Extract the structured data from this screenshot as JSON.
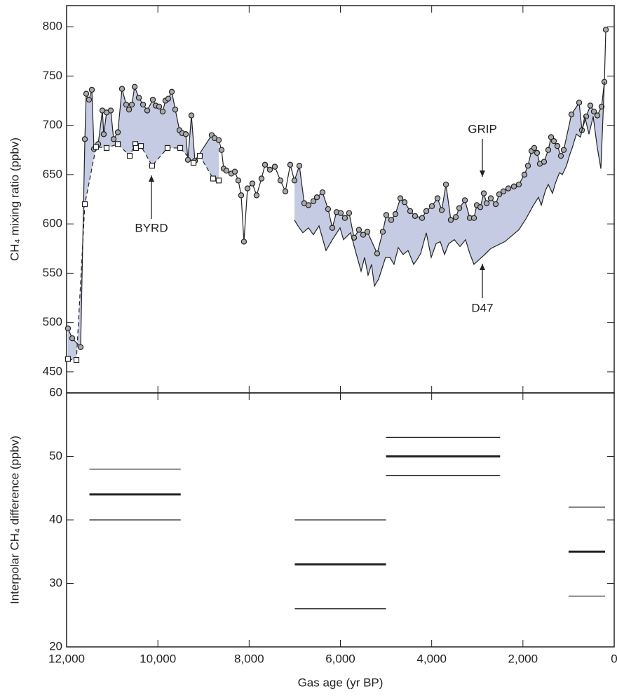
{
  "chart_data": [
    {
      "type": "line",
      "ylabel": "CH₄ mixing ratio (ppbv)",
      "xlim": [
        12000,
        0
      ],
      "ylim": [
        428.6,
        821.4
      ],
      "yticks": [
        450,
        500,
        550,
        600,
        650,
        700,
        750,
        800
      ],
      "fill_color": "#c5cbe3",
      "series": [
        {
          "name": "GRIP",
          "marker": "circle",
          "color": "#222222",
          "x": [
            11970,
            11877,
            11693,
            11600,
            11570,
            11509,
            11447,
            11400,
            11308,
            11216,
            11186,
            11124,
            11032,
            10970,
            10878,
            10786,
            10694,
            10632,
            10571,
            10509,
            10417,
            10325,
            10233,
            10110,
            10048,
            9972,
            9895,
            9834,
            9772,
            9695,
            9619,
            9526,
            9465,
            9388,
            9342,
            9265,
            9188,
            8820,
            8758,
            8666,
            8605,
            8558,
            8497,
            8390,
            8313,
            8237,
            8175,
            8114,
            8036,
            7929,
            7837,
            7729,
            7652,
            7545,
            7437,
            7314,
            7206,
            7099,
            7007,
            6899,
            6792,
            6700,
            6592,
            6515,
            6392,
            6270,
            6177,
            6085,
            5993,
            5901,
            5809,
            5701,
            5594,
            5501,
            5409,
            5194,
            5071,
            4994,
            4886,
            4794,
            4686,
            4594,
            4471,
            4364,
            4210,
            4118,
            3995,
            3872,
            3779,
            3687,
            3580,
            3472,
            3395,
            3272,
            3165,
            3073,
            3011,
            2934,
            2858,
            2796,
            2704,
            2596,
            2520,
            2427,
            2320,
            2197,
            2090,
            1967,
            1890,
            1813,
            1752,
            1690,
            1629,
            1537,
            1445,
            1383,
            1322,
            1245,
            1168,
            1106,
            937,
            768,
            707,
            614,
            522,
            445,
            369,
            276,
            215,
            184
          ],
          "values": [
            494,
            484,
            475,
            686,
            732,
            726,
            736,
            676,
            681,
            715,
            691,
            713,
            715,
            686,
            693,
            737,
            721,
            716,
            721,
            739,
            728,
            721,
            715,
            726,
            720,
            719,
            714,
            725,
            727,
            734,
            716,
            695,
            692,
            691,
            665,
            710,
            664,
            690,
            687,
            685,
            675,
            656,
            654,
            651,
            653,
            644,
            629,
            582,
            636,
            641,
            629,
            646,
            660,
            655,
            658,
            644,
            633,
            660,
            644,
            659,
            621,
            619,
            623,
            627,
            632,
            615,
            596,
            612,
            611,
            606,
            611,
            586,
            594,
            589,
            592,
            570,
            592,
            609,
            604,
            610,
            626,
            622,
            613,
            608,
            606,
            613,
            618,
            626,
            614,
            640,
            604,
            607,
            616,
            624,
            606,
            606,
            619,
            617,
            631,
            621,
            626,
            620,
            630,
            633,
            636,
            638,
            640,
            650,
            659,
            674,
            677,
            672,
            661,
            663,
            675,
            688,
            684,
            679,
            669,
            675,
            711,
            723,
            695,
            709,
            720,
            714,
            710,
            719,
            744,
            797
          ]
        },
        {
          "name": "BYRD",
          "marker": "square",
          "color": "#222222",
          "x": [
            11970,
            11785,
            11600,
            11355,
            11124,
            10878,
            10617,
            10494,
            10479,
            10371,
            10126,
            9788,
            9511,
            9219,
            9081,
            8789,
            8666
          ],
          "values": [
            463,
            462,
            620,
            678,
            677,
            681,
            669,
            681,
            677,
            679,
            659,
            677,
            677,
            662,
            669,
            646,
            644
          ]
        },
        {
          "name": "D47",
          "marker": "none",
          "color": "#222222",
          "x": [
            7007,
            6930,
            6823,
            6700,
            6592,
            6469,
            6316,
            6162,
            6008,
            5932,
            5778,
            5655,
            5547,
            5470,
            5394,
            5317,
            5255,
            5163,
            5010,
            4917,
            4825,
            4732,
            4625,
            4518,
            4394,
            4318,
            4241,
            4118,
            4010,
            3903,
            3811,
            3718,
            3626,
            3503,
            3380,
            3257,
            3165,
            3073,
            2858,
            2704,
            2397,
            2090,
            1936,
            1782,
            1660,
            1598,
            1506,
            1445,
            1352,
            1291,
            1199,
            1137,
            1045,
            983,
            921,
            829,
            737,
            645,
            553,
            461,
            369,
            292,
            215
          ],
          "values": [
            604,
            598,
            591,
            596,
            589,
            598,
            573,
            585,
            596,
            584,
            591,
            570,
            552,
            566,
            548,
            559,
            537,
            544,
            566,
            566,
            559,
            576,
            569,
            573,
            559,
            564,
            570,
            591,
            566,
            580,
            582,
            569,
            580,
            584,
            577,
            584,
            570,
            559,
            568,
            575,
            582,
            594,
            605,
            618,
            627,
            619,
            634,
            640,
            631,
            641,
            652,
            650,
            659,
            669,
            677,
            691,
            688,
            709,
            691,
            709,
            677,
            656,
            744
          ]
        }
      ]
    },
    {
      "type": "interval",
      "ylabel": "Interpolar CH₄ difference (ppbv)",
      "xlabel": "Gas age (yr BP)",
      "xlim": [
        12000,
        0
      ],
      "ylim": [
        20,
        60
      ],
      "xticks": [
        {
          "value": 12000,
          "label": "12,000"
        },
        {
          "value": 10000,
          "label": "10,000"
        },
        {
          "value": 8000,
          "label": "8,000"
        },
        {
          "value": 6000,
          "label": "6,000"
        },
        {
          "value": 4000,
          "label": "4,000"
        },
        {
          "value": 2000,
          "label": "2,000"
        },
        0
      ],
      "yticks": [
        20,
        30,
        40,
        50,
        60
      ],
      "segments": [
        {
          "x": [
            11500,
            9500
          ],
          "value": 44,
          "upper": 48,
          "lower": 40
        },
        {
          "x": [
            7000,
            5000
          ],
          "value": 33,
          "upper": 40,
          "lower": 26
        },
        {
          "x": [
            5000,
            2500
          ],
          "value": 50,
          "upper": 53,
          "lower": 47
        },
        {
          "x": [
            1000,
            200
          ],
          "value": 35,
          "upper": 42,
          "lower": 28
        }
      ]
    }
  ]
}
